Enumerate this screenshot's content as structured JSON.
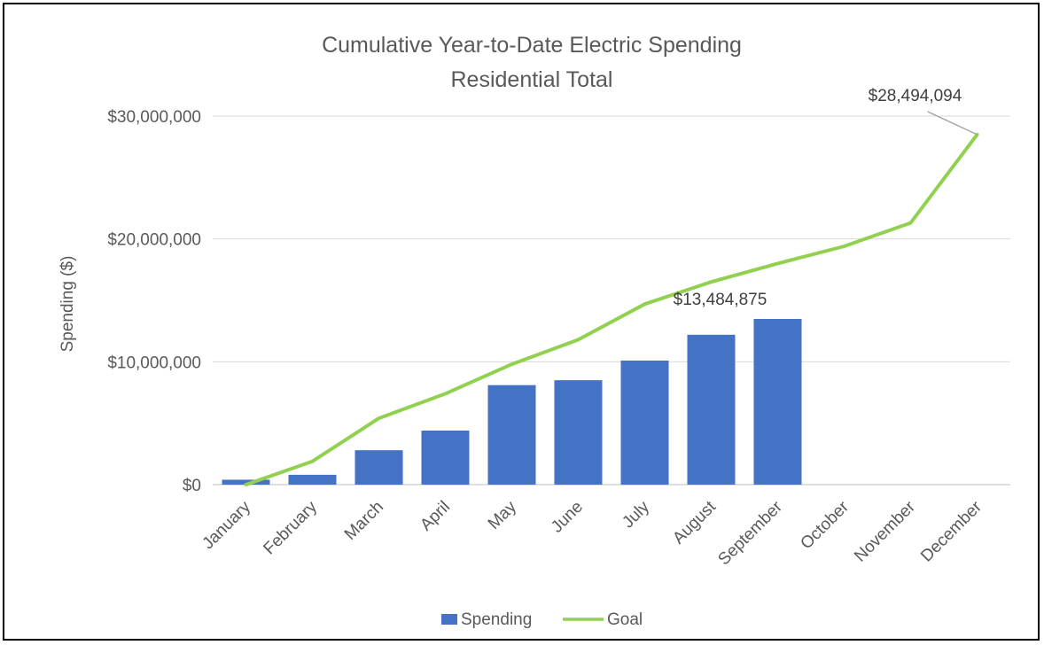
{
  "chart_data": {
    "type": "bar",
    "title": "Cumulative Year-to-Date Electric Spending",
    "subtitle": "Residential Total",
    "xlabel": "",
    "ylabel": "Spending ($)",
    "ylim": [
      0,
      30000000
    ],
    "yticks": [
      {
        "value": 0,
        "label": "$0"
      },
      {
        "value": 10000000,
        "label": "$10,000,000"
      },
      {
        "value": 20000000,
        "label": "$20,000,000"
      },
      {
        "value": 30000000,
        "label": "$30,000,000"
      }
    ],
    "categories": [
      "January",
      "February",
      "March",
      "April",
      "May",
      "June",
      "July",
      "August",
      "September",
      "October",
      "November",
      "December"
    ],
    "series": [
      {
        "name": "Spending",
        "type": "bar",
        "color": "#4472C4",
        "values": [
          400000,
          800000,
          2800000,
          4400000,
          8100000,
          8500000,
          10100000,
          12200000,
          13484875,
          null,
          null,
          null
        ]
      },
      {
        "name": "Goal",
        "type": "line",
        "color": "#92D050",
        "values": [
          0,
          1900000,
          5400000,
          7400000,
          9800000,
          11800000,
          14700000,
          16500000,
          18000000,
          19400000,
          21300000,
          28494094
        ]
      }
    ],
    "annotations": [
      {
        "series": "Spending",
        "category": "September",
        "text": "$13,484,875"
      },
      {
        "series": "Goal",
        "category": "December",
        "text": "$28,494,094"
      }
    ],
    "grid": true,
    "legend_position": "bottom"
  }
}
